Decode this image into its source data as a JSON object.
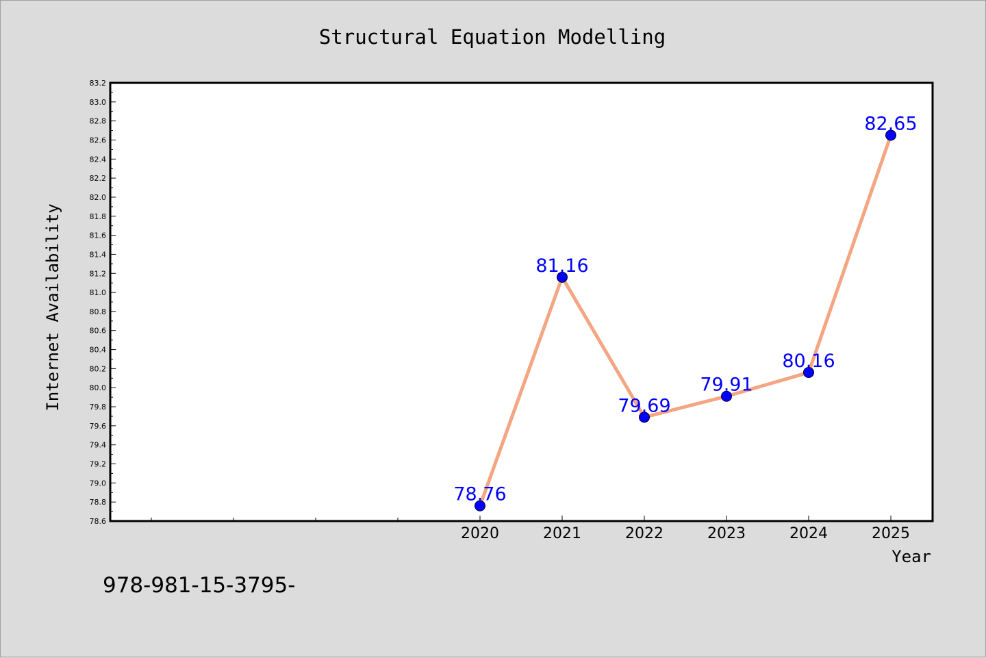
{
  "chart_data": {
    "type": "line",
    "title": "Structural Equation Modelling",
    "xlabel": "Year",
    "ylabel": "Internet Availability",
    "categories": [
      "2020",
      "2021",
      "2022",
      "2023",
      "2024",
      "2025"
    ],
    "series": [
      {
        "values": [
          78.76,
          81.16,
          79.69,
          79.91,
          80.16,
          82.65
        ],
        "data_labels": [
          "78.76",
          "81.16",
          "79.69",
          "79.91",
          "80.16",
          "82.65"
        ],
        "line_color": "#f4a582",
        "marker_color": "#0000ff",
        "label_color": "#0000ff"
      }
    ],
    "ylim": [
      78.6,
      83.2
    ],
    "y_ticks": [
      "78.6",
      "78.8",
      "79.0",
      "79.2",
      "79.4",
      "79.6",
      "79.8",
      "80.0",
      "80.2",
      "80.4",
      "80.6",
      "80.8",
      "81.0",
      "81.2",
      "81.4",
      "81.6",
      "81.8",
      "82.0",
      "82.2",
      "82.4",
      "82.6",
      "82.8",
      "83.0",
      "83.2"
    ],
    "grid": false,
    "legend": "none",
    "annotation": "978-981-15-3795-"
  },
  "colors": {
    "background": "#dcdcdc",
    "plot_background": "#ffffff",
    "axis": "#000000"
  }
}
